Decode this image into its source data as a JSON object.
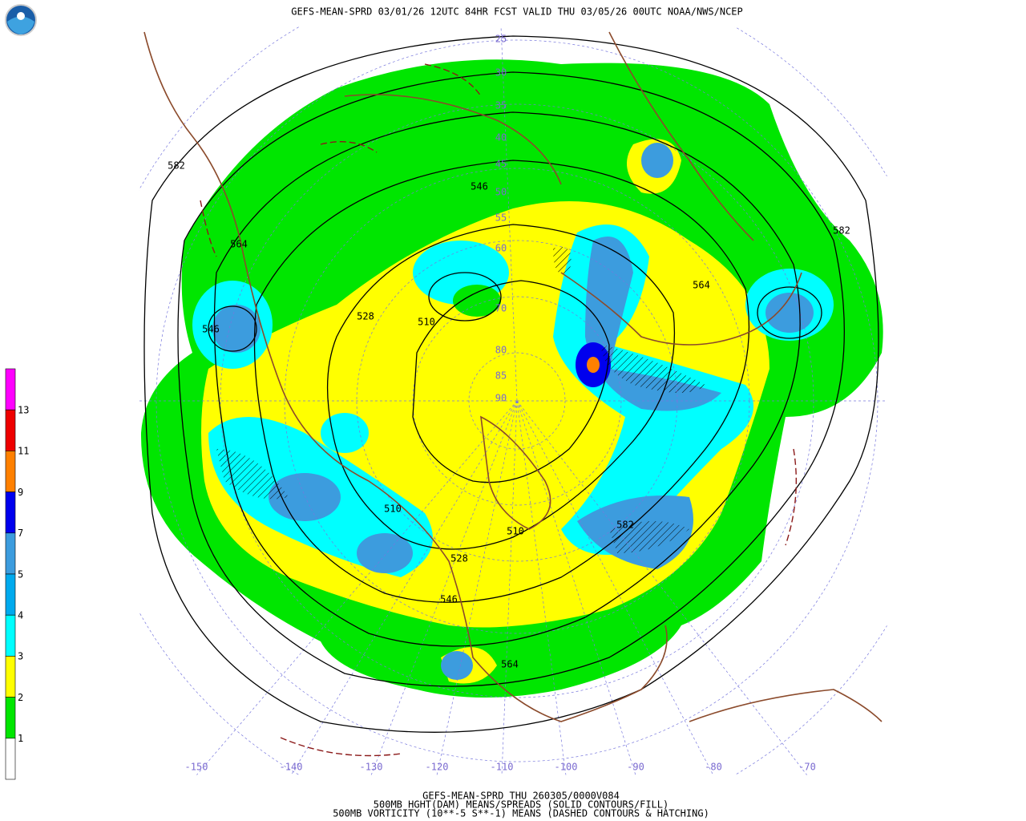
{
  "header": {
    "title": "GEFS-MEAN-SPRD 03/01/26 12UTC 84HR FCST VALID THU 03/05/26 00UTC NOAA/NWS/NCEP"
  },
  "colorbar": {
    "labels": [
      13,
      11,
      9,
      7,
      5,
      4,
      3,
      2,
      1
    ]
  },
  "contour_labels": [
    "582",
    "582",
    "564",
    "546",
    "528",
    "510",
    "546",
    "564",
    "510",
    "528",
    "546",
    "564",
    "582",
    "510"
  ],
  "latitude_labels": [
    "25",
    "30",
    "35",
    "40",
    "45",
    "50",
    "55",
    "60",
    "70",
    "80",
    "85",
    "90"
  ],
  "longitude_labels": [
    "-150",
    "-140",
    "-130",
    "-120",
    "-110",
    "-100",
    "-90",
    "-80",
    "-70"
  ],
  "footer": {
    "lines": [
      "GEFS-MEAN-SPRD THU 260305/0000V084",
      "500MB HGHT(DAM) MEANS/SPREADS (SOLID CONTOURS/FILL)",
      "500MB VORTICITY (10**-5 S**-1) MEANS (DASHED CONTOURS & HATCHING)"
    ]
  }
}
